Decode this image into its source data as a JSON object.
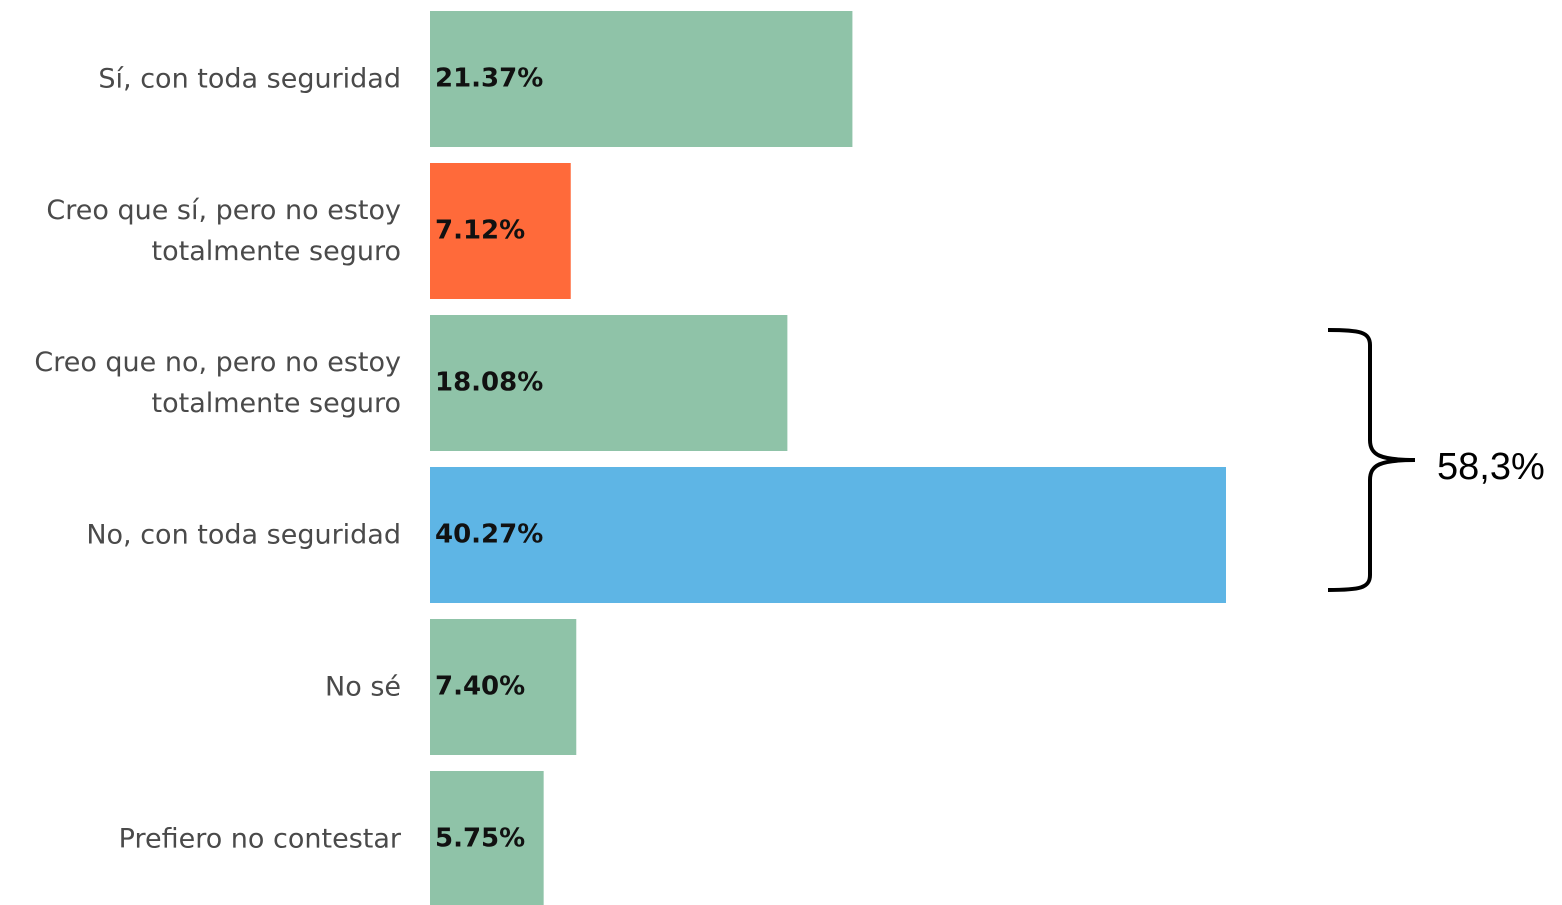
{
  "chart_data": {
    "type": "bar",
    "orientation": "horizontal",
    "categories": [
      "Sí, con toda seguridad",
      "Creo que sí, pero no estoy\ntotalmente seguro",
      "Creo que no, pero no estoy\ntotalmente seguro",
      "No, con toda seguridad",
      "No sé",
      "Prefiero no contestar"
    ],
    "values": [
      21.37,
      7.12,
      18.08,
      40.27,
      7.4,
      5.75
    ],
    "value_labels": [
      "21.37%",
      "7.12%",
      "18.08%",
      "40.27%",
      "7.40%",
      "5.75%"
    ],
    "colors": [
      "#8fc3a8",
      "#ff6a3a",
      "#8fc3a8",
      "#5eb5e5",
      "#8fc3a8",
      "#8fc3a8"
    ],
    "annotations": [
      {
        "text": "58,3%"
      }
    ]
  }
}
